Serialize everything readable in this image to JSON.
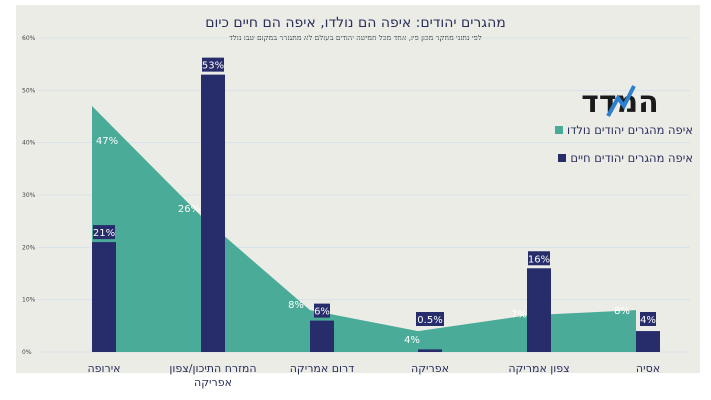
{
  "title": "מהגרים יהודים: איפה הם נולדו, איפה הם חיים כיום",
  "subtitle": "לפי נתוני מחקר מכון פיו, אחד מכל חמישה יהודים בעולם לא מתגורר במקום שבו נולד",
  "logo_text": "המדד",
  "colors": {
    "born": "#4aab98",
    "living": "#272c6b",
    "panel": "#ecece7",
    "grid": "#d9e2ea"
  },
  "chart_data": {
    "type": "bar+area",
    "categories": [
      "אירופה",
      "המזרח התיכון/צפון אפריקה",
      "דרום אמריקה",
      "אפריקה",
      "צפון אמריקה",
      "אסיה"
    ],
    "series": [
      {
        "name": "איפה מהגרים יהודים נולדו",
        "type": "area",
        "values": [
          47,
          26,
          8,
          4,
          7,
          8
        ],
        "labels": [
          "47%",
          "26%",
          "8%",
          "4%",
          "7%",
          "8%"
        ]
      },
      {
        "name": "איפה מהגרים יהודים חיים",
        "type": "bar",
        "values": [
          21,
          53,
          6,
          0.5,
          16,
          4
        ],
        "labels": [
          "21%",
          "53%",
          "6%",
          "0.5%",
          "16%",
          "4%"
        ]
      }
    ],
    "yticks": [
      "0%",
      "10%",
      "20%",
      "30%",
      "40%",
      "50%",
      "60%"
    ],
    "ylim": [
      0,
      60
    ],
    "grid": true,
    "legend": "right"
  }
}
